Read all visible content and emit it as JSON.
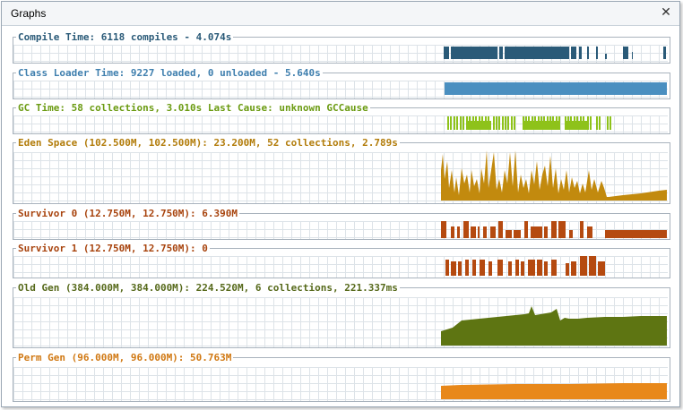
{
  "window": {
    "title": "Graphs",
    "close_icon": "close-icon"
  },
  "panels": [
    {
      "id": "compile",
      "label": "Compile Time: 6118 compiles - 4.074s",
      "color": "#2a5a78",
      "text_color": "#2a5a78"
    },
    {
      "id": "classloader",
      "label": "Class Loader Time: 9227 loaded, 0 unloaded - 5.640s",
      "color": "#4a8fc0",
      "text_color": "#3f7fae"
    },
    {
      "id": "gc",
      "label": "GC Time: 58 collections, 3.010s  Last Cause: unknown GCCause",
      "color": "#8ec21a",
      "text_color": "#6b9b12"
    },
    {
      "id": "eden",
      "label": "Eden Space (102.500M, 102.500M): 23.200M, 52 collections, 2.789s",
      "color": "#c28a0e",
      "text_color": "#b27c0a"
    },
    {
      "id": "survivor0",
      "label": "Survivor 0 (12.750M, 12.750M): 6.390M",
      "color": "#b54a10",
      "text_color": "#a8440e"
    },
    {
      "id": "survivor1",
      "label": "Survivor 1 (12.750M, 12.750M): 0",
      "color": "#b54a10",
      "text_color": "#a8440e"
    },
    {
      "id": "oldgen",
      "label": "Old Gen (384.000M, 384.000M): 224.520M, 6 collections, 221.337ms",
      "color": "#5e7512",
      "text_color": "#56691a"
    },
    {
      "id": "permgen",
      "label": "Perm Gen (96.000M, 96.000M): 50.763M",
      "color": "#e8881a",
      "text_color": "#d07812"
    }
  ]
}
